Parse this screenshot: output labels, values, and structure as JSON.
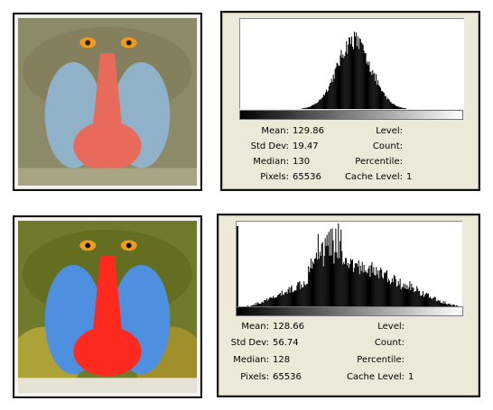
{
  "panels": [
    {
      "stats": {
        "mean_label": "Mean:",
        "mean": "129.86",
        "std_label": "Std Dev:",
        "std": "19.47",
        "median_label": "Median:",
        "median": "130",
        "pixels_label": "Pixels:",
        "pixels": "65536",
        "level_label": "Level:",
        "count_label": "Count:",
        "percentile_label": "Percentile:",
        "cache_label": "Cache Level:",
        "cache": "1"
      },
      "histogram": {
        "center": 129.86,
        "spread": 19.47
      }
    },
    {
      "stats": {
        "mean_label": "Mean:",
        "mean": "128.66",
        "std_label": "Std Dev:",
        "std": "56.74",
        "median_label": "Median:",
        "median": "128",
        "pixels_label": "Pixels:",
        "pixels": "65536",
        "level_label": "Level:",
        "count_label": "Count:",
        "percentile_label": "Percentile:",
        "cache_label": "Cache Level:",
        "cache": "1"
      },
      "histogram": {
        "center": 128.66,
        "spread": 56.74
      }
    }
  ],
  "colors": {
    "fur_low": "#8d8a6a",
    "fur_high": "#6f7b2a",
    "cheek_low": "#8fb2c9",
    "cheek_high": "#4e8fe0",
    "nose_low": "#e86a5a",
    "nose_high": "#ff2a1f",
    "eye": "#f09a20"
  }
}
